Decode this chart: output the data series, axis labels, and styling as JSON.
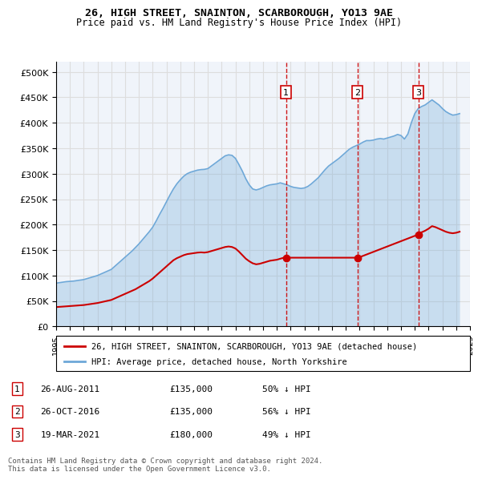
{
  "title_line1": "26, HIGH STREET, SNAINTON, SCARBOROUGH, YO13 9AE",
  "title_line2": "Price paid vs. HM Land Registry's House Price Index (HPI)",
  "legend_line1": "26, HIGH STREET, SNAINTON, SCARBOROUGH, YO13 9AE (detached house)",
  "legend_line2": "HPI: Average price, detached house, North Yorkshire",
  "footer": "Contains HM Land Registry data © Crown copyright and database right 2024.\nThis data is licensed under the Open Government Licence v3.0.",
  "sale_dates": [
    "2011-08-26",
    "2016-10-26",
    "2021-03-19"
  ],
  "sale_prices": [
    135000,
    135000,
    180000
  ],
  "sale_labels": [
    "1",
    "2",
    "3"
  ],
  "sale_info": [
    "26-AUG-2011    £135,000    50% ↓ HPI",
    "26-OCT-2016    £135,000    56% ↓ HPI",
    "19-MAR-2021    £180,000    49% ↓ HPI"
  ],
  "hpi_color": "#6ea8d8",
  "hpi_fill": "#d6e8f7",
  "sale_color": "#cc0000",
  "vline_color": "#cc0000",
  "ylim": [
    0,
    520000
  ],
  "yticks": [
    0,
    50000,
    100000,
    150000,
    200000,
    250000,
    300000,
    350000,
    400000,
    450000,
    500000
  ],
  "background_color": "#ffffff",
  "grid_color": "#dddddd",
  "hpi_data_x": [
    1995.0,
    1995.25,
    1995.5,
    1995.75,
    1996.0,
    1996.25,
    1996.5,
    1996.75,
    1997.0,
    1997.25,
    1997.5,
    1997.75,
    1998.0,
    1998.25,
    1998.5,
    1998.75,
    1999.0,
    1999.25,
    1999.5,
    1999.75,
    2000.0,
    2000.25,
    2000.5,
    2000.75,
    2001.0,
    2001.25,
    2001.5,
    2001.75,
    2002.0,
    2002.25,
    2002.5,
    2002.75,
    2003.0,
    2003.25,
    2003.5,
    2003.75,
    2004.0,
    2004.25,
    2004.5,
    2004.75,
    2005.0,
    2005.25,
    2005.5,
    2005.75,
    2006.0,
    2006.25,
    2006.5,
    2006.75,
    2007.0,
    2007.25,
    2007.5,
    2007.75,
    2008.0,
    2008.25,
    2008.5,
    2008.75,
    2009.0,
    2009.25,
    2009.5,
    2009.75,
    2010.0,
    2010.25,
    2010.5,
    2010.75,
    2011.0,
    2011.25,
    2011.5,
    2011.75,
    2012.0,
    2012.25,
    2012.5,
    2012.75,
    2013.0,
    2013.25,
    2013.5,
    2013.75,
    2014.0,
    2014.25,
    2014.5,
    2014.75,
    2015.0,
    2015.25,
    2015.5,
    2015.75,
    2016.0,
    2016.25,
    2016.5,
    2016.75,
    2017.0,
    2017.25,
    2017.5,
    2017.75,
    2018.0,
    2018.25,
    2018.5,
    2018.75,
    2019.0,
    2019.25,
    2019.5,
    2019.75,
    2020.0,
    2020.25,
    2020.5,
    2020.75,
    2021.0,
    2021.25,
    2021.5,
    2021.75,
    2022.0,
    2022.25,
    2022.5,
    2022.75,
    2023.0,
    2023.25,
    2023.5,
    2023.75,
    2024.0,
    2024.25
  ],
  "hpi_data_y": [
    85000,
    86000,
    87000,
    88000,
    88500,
    89000,
    90000,
    91000,
    92000,
    94000,
    96000,
    98000,
    100000,
    103000,
    106000,
    109000,
    112000,
    118000,
    124000,
    130000,
    136000,
    142000,
    148000,
    155000,
    162000,
    170000,
    178000,
    186000,
    195000,
    207000,
    220000,
    232000,
    245000,
    258000,
    270000,
    280000,
    288000,
    295000,
    300000,
    303000,
    305000,
    307000,
    308000,
    308500,
    310000,
    315000,
    320000,
    325000,
    330000,
    335000,
    337000,
    336000,
    330000,
    318000,
    305000,
    290000,
    278000,
    270000,
    268000,
    270000,
    273000,
    276000,
    278000,
    279000,
    280000,
    282000,
    280000,
    278000,
    275000,
    273000,
    272000,
    271000,
    272000,
    275000,
    280000,
    286000,
    292000,
    300000,
    308000,
    315000,
    320000,
    325000,
    330000,
    336000,
    342000,
    348000,
    352000,
    355000,
    358000,
    362000,
    365000,
    365000,
    366000,
    368000,
    369000,
    368000,
    370000,
    372000,
    374000,
    377000,
    375000,
    368000,
    378000,
    400000,
    418000,
    428000,
    432000,
    435000,
    440000,
    445000,
    440000,
    435000,
    428000,
    422000,
    418000,
    415000,
    416000,
    418000
  ],
  "red_line_x": [
    1995.0,
    1995.25,
    1995.5,
    1995.75,
    1996.0,
    1996.25,
    1996.5,
    1996.75,
    1997.0,
    1997.25,
    1997.5,
    1997.75,
    1998.0,
    1998.25,
    1998.5,
    1998.75,
    1999.0,
    1999.25,
    1999.5,
    1999.75,
    2000.0,
    2000.25,
    2000.5,
    2000.75,
    2001.0,
    2001.25,
    2001.5,
    2001.75,
    2002.0,
    2002.25,
    2002.5,
    2002.75,
    2003.0,
    2003.25,
    2003.5,
    2003.75,
    2004.0,
    2004.25,
    2004.5,
    2004.75,
    2005.0,
    2005.25,
    2005.5,
    2005.75,
    2006.0,
    2006.25,
    2006.5,
    2006.75,
    2007.0,
    2007.25,
    2007.5,
    2007.75,
    2008.0,
    2008.25,
    2008.5,
    2008.75,
    2009.0,
    2009.25,
    2009.5,
    2009.75,
    2010.0,
    2010.25,
    2010.5,
    2010.75,
    2011.0,
    2011.5,
    2011.65,
    2016.8,
    2017.0,
    2021.2,
    2021.25,
    2021.5,
    2021.75,
    2022.0,
    2022.25,
    2022.5,
    2022.75,
    2023.0,
    2023.25,
    2023.5,
    2023.75,
    2024.0,
    2024.25
  ],
  "red_line_y": [
    38000,
    38500,
    39000,
    39500,
    40000,
    40500,
    41000,
    41500,
    42000,
    43000,
    44000,
    45000,
    46000,
    47500,
    49000,
    50500,
    52000,
    55000,
    58000,
    61000,
    64000,
    67000,
    70000,
    73000,
    77000,
    81000,
    85000,
    89000,
    94000,
    100000,
    106000,
    112000,
    118000,
    124000,
    130000,
    134000,
    137000,
    140000,
    142000,
    143000,
    144000,
    145000,
    145500,
    145000,
    146000,
    148000,
    150000,
    152000,
    154000,
    156000,
    157000,
    156000,
    153000,
    147000,
    140000,
    133000,
    128000,
    124000,
    122000,
    123000,
    125000,
    127000,
    129000,
    130000,
    131000,
    135000,
    135000,
    135000,
    136000,
    180000,
    181000,
    185000,
    188000,
    192000,
    197000,
    195000,
    192000,
    189000,
    186000,
    184000,
    183000,
    184000,
    186000
  ]
}
